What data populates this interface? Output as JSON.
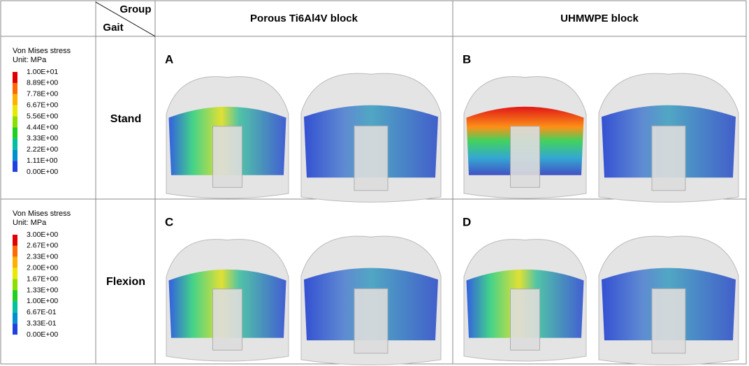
{
  "header": {
    "corner_top": "Group",
    "corner_bottom": "Gait",
    "columns": [
      "Porous Ti6Al4V block",
      "UHMWPE block"
    ]
  },
  "rows": [
    {
      "legend": {
        "title": "Von Mises stress",
        "unit": "Unit: MPa",
        "labels": [
          "1.00E+01",
          "8.89E+00",
          "7.78E+00",
          "6.67E+00",
          "5.56E+00",
          "4.44E+00",
          "3.33E+00",
          "2.22E+00",
          "1.11E+00",
          "0.00E+00"
        ]
      },
      "gait": "Stand",
      "panels": [
        "A",
        "B"
      ]
    },
    {
      "legend": {
        "title": "Von Mises stress",
        "unit": "Unit: MPa",
        "labels": [
          "3.00E+00",
          "2.67E+00",
          "2.33E+00",
          "2.00E+00",
          "1.67E+00",
          "1.33E+00",
          "1.00E+00",
          "6.67E-01",
          "3.33E-01",
          "0.00E+00"
        ]
      },
      "gait": "Flexion",
      "panels": [
        "C",
        "D"
      ]
    }
  ]
}
